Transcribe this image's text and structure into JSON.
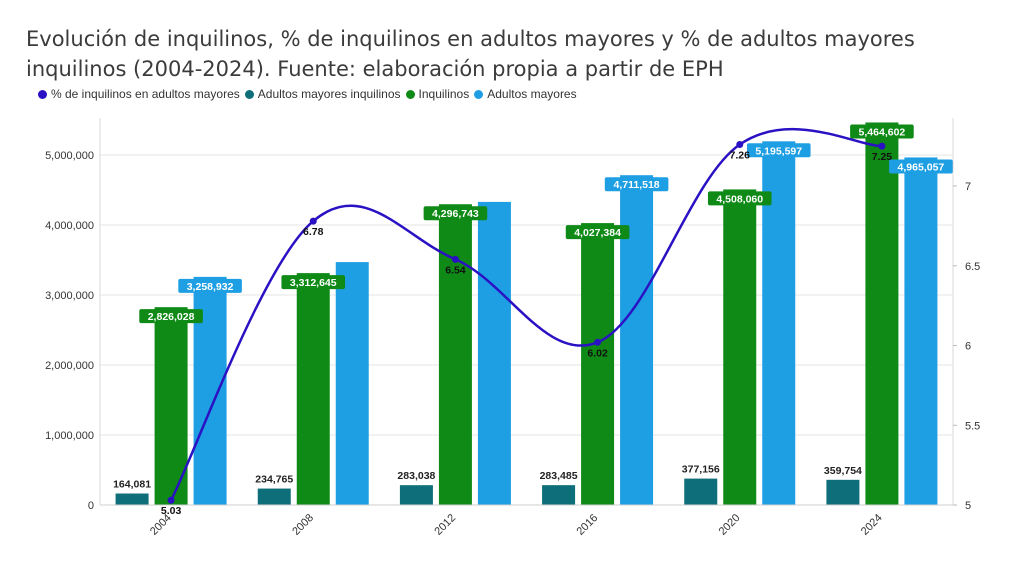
{
  "chart_data": {
    "type": "bar",
    "title": "Evolución de inquilinos, % de inquilinos en adultos mayores y % de adultos mayores inquilinos (2004-2024). Fuente: elaboración propia a partir de EPH",
    "categories": [
      "2004",
      "2008",
      "2012",
      "2016",
      "2020",
      "2024"
    ],
    "series": [
      {
        "name": "Adultos mayores inquilinos",
        "type": "bar",
        "color": "#0e6e7a",
        "axis": "left",
        "values": [
          164081,
          234765,
          283038,
          283485,
          377156,
          359754
        ],
        "labels": [
          "164,081",
          "234,765",
          "283,038",
          "283,485",
          "377,156",
          "359,754"
        ]
      },
      {
        "name": "Inquilinos",
        "type": "bar",
        "color": "#0f8a16",
        "axis": "left",
        "values": [
          2826028,
          3312645,
          4296743,
          4027384,
          4508060,
          5464602
        ],
        "labels": [
          "2,826,028",
          "3,312,645",
          "4,296,743",
          "4,027,384",
          "4,508,060",
          "5,464,602"
        ]
      },
      {
        "name": "Adultos mayores",
        "type": "bar",
        "color": "#1f9fe3",
        "axis": "left",
        "values": [
          3258932,
          3470000,
          4330000,
          4711518,
          5195597,
          4965057
        ],
        "labels": [
          "3,258,932",
          "",
          "",
          "4,711,518",
          "5,195,597",
          "4,965,057"
        ]
      },
      {
        "name": "% de inquilinos en adultos mayores",
        "type": "line",
        "color": "#2a12c4",
        "axis": "right",
        "values": [
          5.03,
          6.78,
          6.54,
          6.02,
          7.26,
          7.25
        ],
        "labels": [
          "5.03",
          "6.78",
          "6.54",
          "6.02",
          "7.26",
          "7.25"
        ]
      }
    ],
    "y_left": {
      "min": 0,
      "max": 5000000,
      "step": 1000000,
      "ticks": [
        "0",
        "1,000,000",
        "2,000,000",
        "3,000,000",
        "4,000,000",
        "5,000,000"
      ]
    },
    "y_right": {
      "min": 5,
      "max": 7,
      "step": 0.5,
      "ticks": [
        "5",
        "5.5",
        "6",
        "6.5",
        "7"
      ]
    },
    "grid": true,
    "legend_position": "top-left"
  }
}
